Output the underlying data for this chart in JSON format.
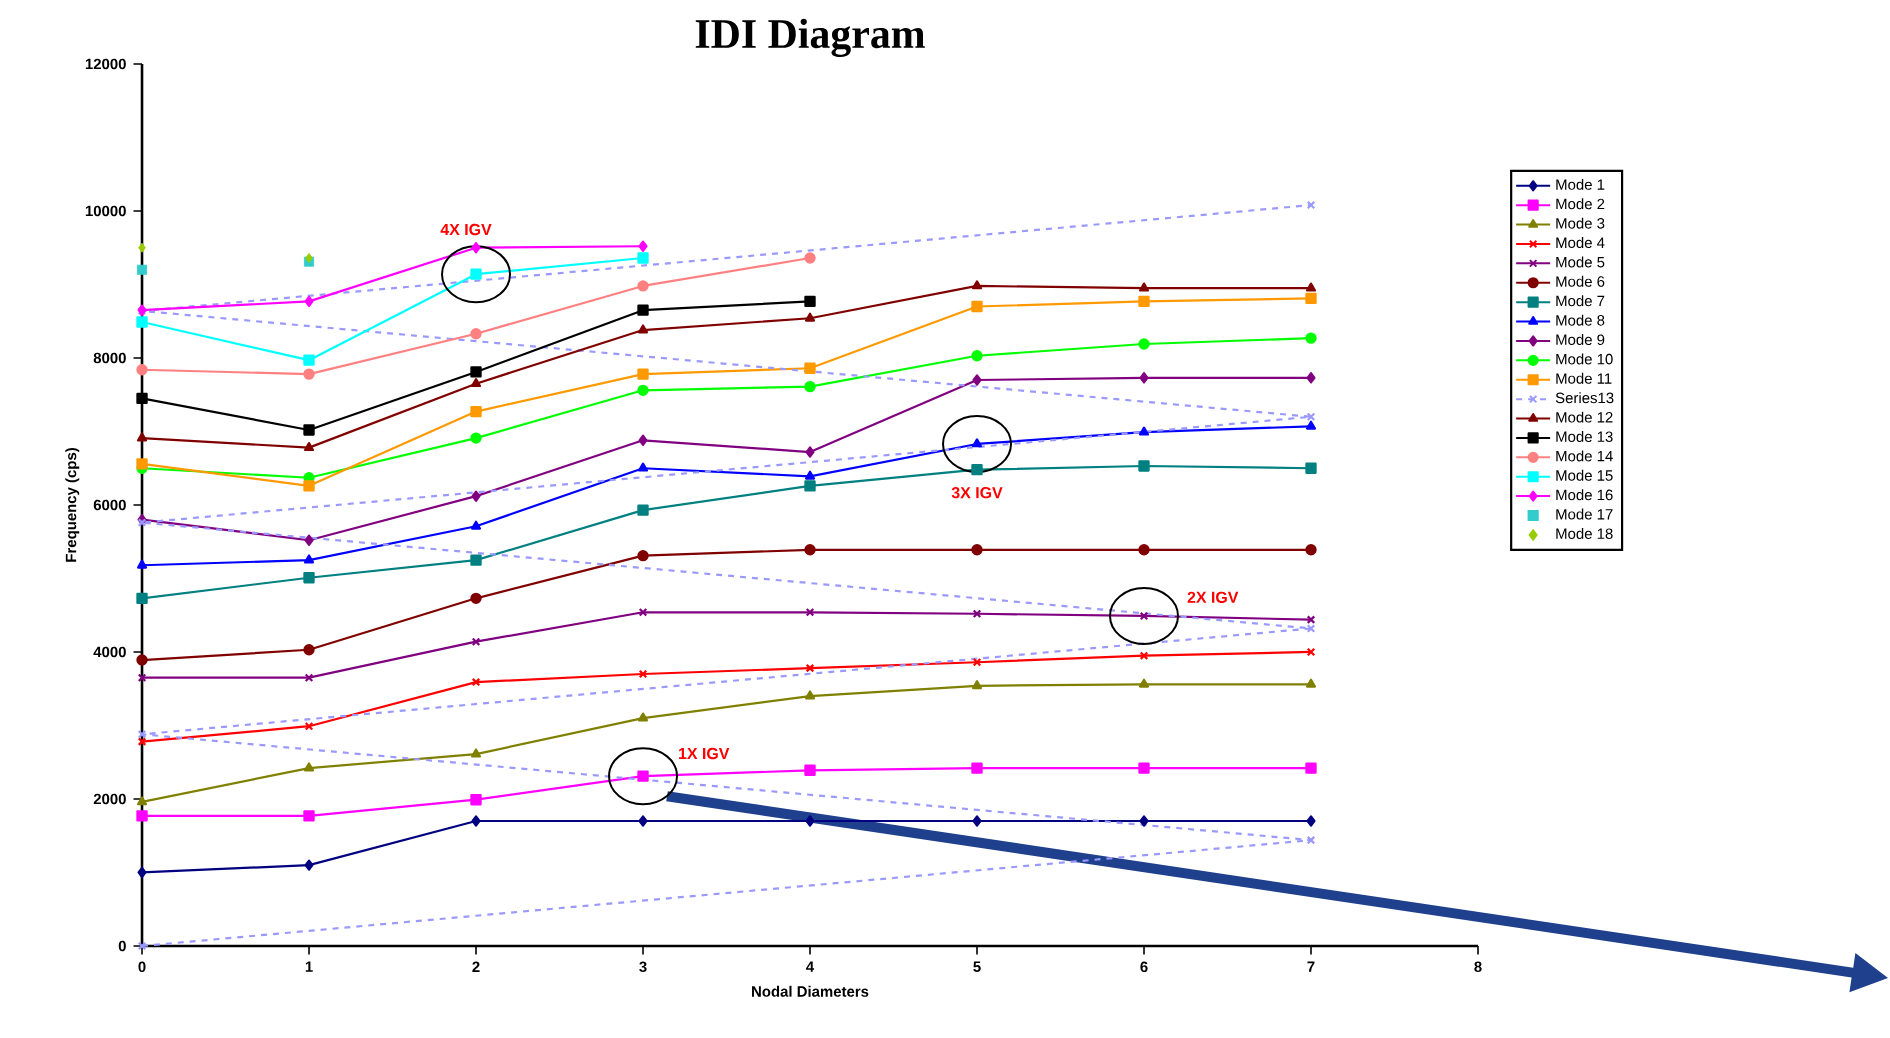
{
  "chart_data": {
    "type": "line",
    "title": "IDI Diagram",
    "xlabel": "Nodal Diameters",
    "ylabel": "Frequency (cps)",
    "xlim": [
      0,
      8
    ],
    "xticks": [
      0,
      1,
      2,
      3,
      4,
      5,
      6,
      7,
      8
    ],
    "ylim": [
      0,
      12000
    ],
    "yticks": [
      0,
      2000,
      4000,
      6000,
      8000,
      10000,
      12000
    ],
    "legend": "right",
    "x": [
      0,
      1,
      2,
      3,
      4,
      5,
      6,
      7
    ],
    "series": [
      {
        "name": "Mode 1",
        "color": "#000080",
        "marker": "diamond",
        "values": [
          1000,
          1100,
          1700,
          1700,
          1700,
          1700,
          1700,
          1700
        ]
      },
      {
        "name": "Mode 2",
        "color": "#ff00ff",
        "marker": "square",
        "values": [
          1770,
          1770,
          1990,
          2310,
          2390,
          2420,
          2420,
          2420
        ]
      },
      {
        "name": "Mode 3",
        "color": "#808000",
        "marker": "triangle",
        "values": [
          1960,
          2420,
          2610,
          3100,
          3400,
          3540,
          3560,
          3560
        ]
      },
      {
        "name": "Mode 4",
        "color": "#ff0000",
        "marker": "cross",
        "values": [
          2780,
          2990,
          3590,
          3700,
          3780,
          3860,
          3950,
          4000
        ]
      },
      {
        "name": "Mode 5",
        "color": "#800080",
        "marker": "cross",
        "values": [
          3650,
          3650,
          4140,
          4540,
          4540,
          4520,
          4490,
          4440
        ]
      },
      {
        "name": "Mode 6",
        "color": "#800000",
        "marker": "circle",
        "values": [
          3890,
          4030,
          4730,
          5310,
          5390,
          5390,
          5390,
          5390
        ]
      },
      {
        "name": "Mode 7",
        "color": "#008080",
        "marker": "square",
        "values": [
          4730,
          5010,
          5250,
          5930,
          6260,
          6480,
          6530,
          6500
        ]
      },
      {
        "name": "Mode 8",
        "color": "#0000ff",
        "marker": "triangle",
        "values": [
          5180,
          5250,
          5710,
          6500,
          6390,
          6830,
          6990,
          7070
        ]
      },
      {
        "name": "Mode 9",
        "color": "#800080",
        "marker": "diamond",
        "values": [
          5800,
          5520,
          6120,
          6880,
          6720,
          7700,
          7730,
          7730
        ]
      },
      {
        "name": "Mode 10",
        "color": "#00ff00",
        "marker": "circle",
        "values": [
          6500,
          6370,
          6910,
          7560,
          7610,
          8030,
          8190,
          8270
        ]
      },
      {
        "name": "Mode 11",
        "color": "#ff9900",
        "marker": "square",
        "values": [
          6560,
          6260,
          7270,
          7780,
          7860,
          8700,
          8770,
          8810
        ]
      },
      {
        "name": "Series13",
        "color": "#9999ff",
        "marker": "cross",
        "line_style": "dashed",
        "x": [
          0,
          7,
          0,
          7,
          0,
          7,
          0,
          7
        ],
        "values": [
          0,
          1440,
          2880,
          4320,
          5760,
          7200,
          8640,
          10080
        ]
      },
      {
        "name": "Mode 12",
        "color": "#800000",
        "marker": "triangle",
        "values": [
          6910,
          6780,
          7650,
          8380,
          8540,
          8980,
          8950,
          8950
        ]
      },
      {
        "name": "Mode 13",
        "color": "#000000",
        "marker": "square",
        "x": [
          0,
          1,
          2,
          3,
          4
        ],
        "values": [
          7450,
          7020,
          7810,
          8650,
          8770
        ]
      },
      {
        "name": "Mode 14",
        "color": "#ff8080",
        "marker": "circle",
        "x": [
          0,
          1,
          2,
          3,
          4
        ],
        "values": [
          7840,
          7780,
          8330,
          8980,
          9360
        ]
      },
      {
        "name": "Mode 15",
        "color": "#00ffff",
        "marker": "square",
        "x": [
          0,
          1,
          2,
          3
        ],
        "values": [
          8490,
          7970,
          9140,
          9360
        ]
      },
      {
        "name": "Mode 16",
        "color": "#ff00ff",
        "marker": "diamond",
        "x": [
          0,
          1,
          2,
          3
        ],
        "values": [
          8650,
          8770,
          9500,
          9520
        ]
      },
      {
        "name": "Mode 17",
        "type": "scatter",
        "color": "#33cccc",
        "marker": "square",
        "x": [
          0,
          1
        ],
        "values": [
          9200,
          9310
        ]
      },
      {
        "name": "Mode 18",
        "type": "scatter",
        "color": "#99cc00",
        "marker": "diamond",
        "x": [
          0,
          1
        ],
        "values": [
          9500,
          9360
        ]
      }
    ],
    "annotations": [
      {
        "text": "4X IGV",
        "x": 2,
        "y": 9140
      },
      {
        "text": "3X IGV",
        "x": 5,
        "y": 6830
      },
      {
        "text": "2X IGV",
        "x": 6,
        "y": 4490
      },
      {
        "text": "1X IGV",
        "x": 3,
        "y": 2310
      }
    ]
  }
}
